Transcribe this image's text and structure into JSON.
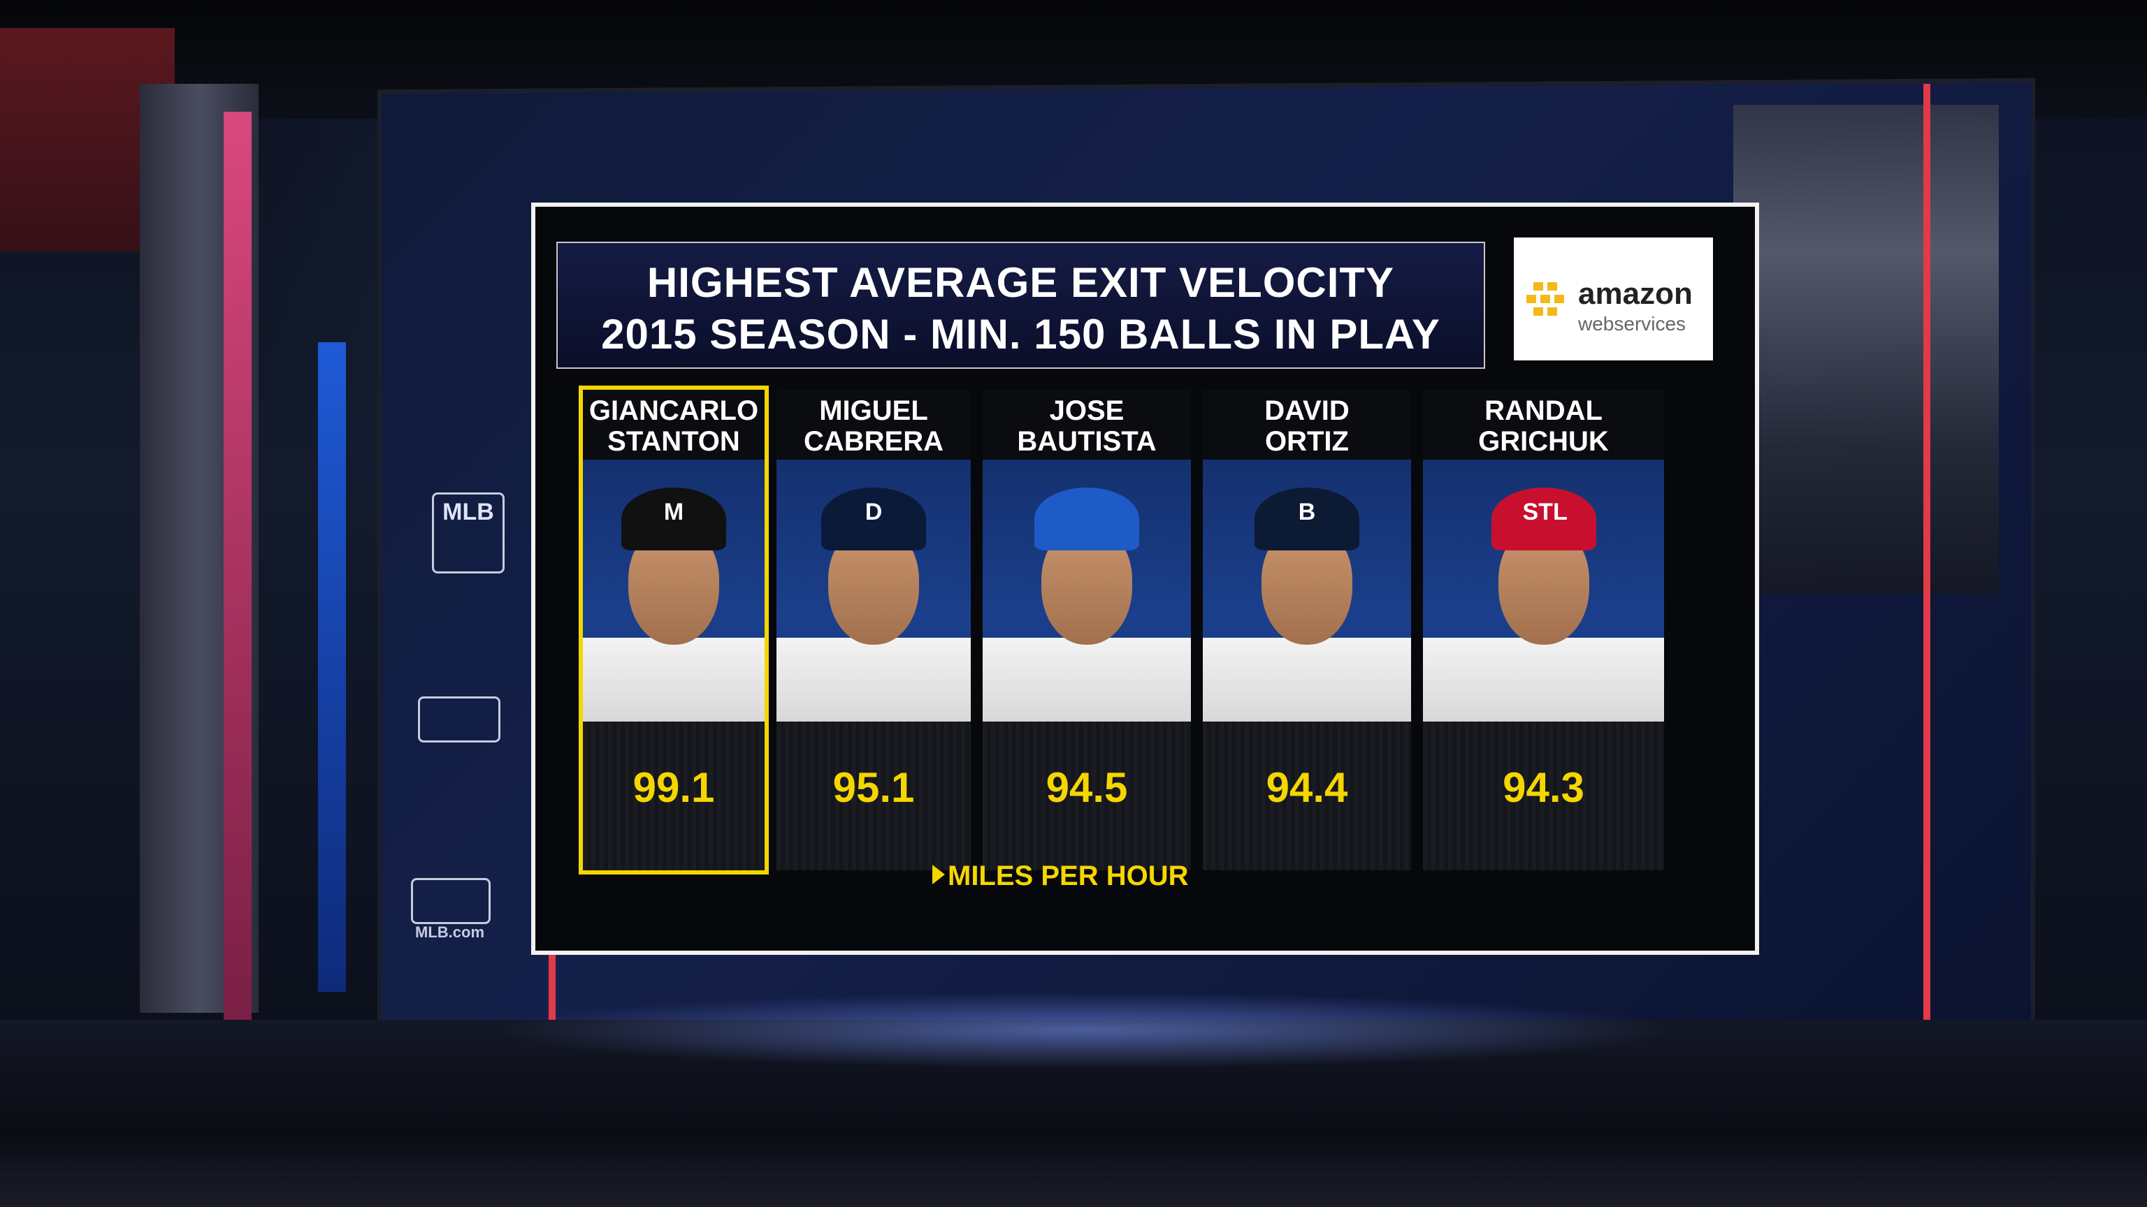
{
  "graphic": {
    "title_line1": "HIGHEST AVERAGE EXIT VELOCITY",
    "title_line2": "2015 SEASON - MIN. 150 BALLS IN PLAY",
    "sponsor": {
      "word": "amazon",
      "sub": "webservices"
    },
    "unit_label": "MILES PER HOUR",
    "players": [
      {
        "first": "GIANCARLO",
        "last": "STANTON",
        "value": "99.1",
        "cap_color": "#111111",
        "cap_logo": "M",
        "highlight": true
      },
      {
        "first": "MIGUEL",
        "last": "CABRERA",
        "value": "95.1",
        "cap_color": "#0b1a38",
        "cap_logo": "D",
        "highlight": false
      },
      {
        "first": "JOSE",
        "last": "BAUTISTA",
        "value": "94.5",
        "cap_color": "#1e5bc6",
        "cap_logo": "",
        "highlight": false
      },
      {
        "first": "DAVID",
        "last": "ORTIZ",
        "value": "94.4",
        "cap_color": "#0c1a33",
        "cap_logo": "B",
        "highlight": false
      },
      {
        "first": "RANDAL",
        "last": "GRICHUK",
        "value": "94.3",
        "cap_color": "#c8102e",
        "cap_logo": "STL",
        "highlight": false
      }
    ]
  },
  "studio": {
    "mlb_network_logo": "MLB",
    "mlbcom_label": "MLB.com"
  },
  "colors": {
    "accent_yellow": "#f5d600",
    "navy": "#151b45"
  }
}
